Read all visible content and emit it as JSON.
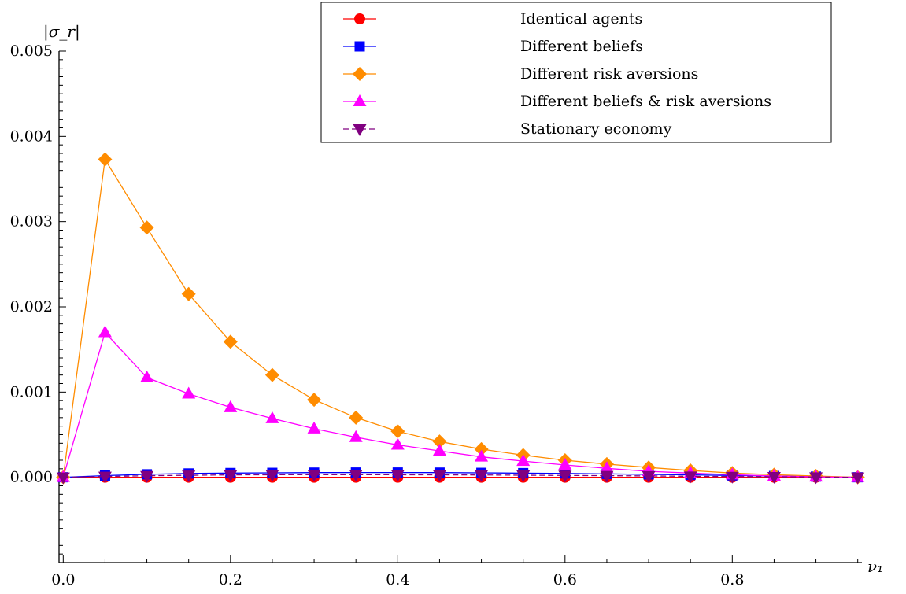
{
  "chart_data": {
    "type": "line",
    "xlabel": "ν₁",
    "ylabel": "|σ_r|",
    "xlim": [
      -0.005,
      0.955
    ],
    "ylim": [
      -0.001,
      0.005
    ],
    "x_ticks": [
      "0.0",
      "0.2",
      "0.4",
      "0.6",
      "0.8"
    ],
    "x_tick_values": [
      0.0,
      0.2,
      0.4,
      0.6,
      0.8
    ],
    "y_ticks": [
      "0.000",
      "0.001",
      "0.002",
      "0.003",
      "0.004",
      "0.005"
    ],
    "y_tick_values": [
      0.0,
      0.001,
      0.002,
      0.003,
      0.004,
      0.005
    ],
    "legend_position": "top-right",
    "x": [
      0.0,
      0.05,
      0.1,
      0.15,
      0.2,
      0.25,
      0.3,
      0.35,
      0.4,
      0.45,
      0.5,
      0.55,
      0.6,
      0.65,
      0.7,
      0.75,
      0.8,
      0.85,
      0.9,
      0.95
    ],
    "series": [
      {
        "name": "Identical agents",
        "color": "#ff0000",
        "marker": "circle",
        "dashed": false,
        "values": [
          0.0,
          0.0,
          0.0,
          0.0,
          0.0,
          0.0,
          0.0,
          0.0,
          0.0,
          0.0,
          0.0,
          0.0,
          0.0,
          0.0,
          0.0,
          0.0,
          0.0,
          0.0,
          0.0,
          0.0
        ]
      },
      {
        "name": "Different beliefs",
        "color": "#0000ff",
        "marker": "square",
        "dashed": false,
        "values": [
          0.0,
          2e-05,
          3.5e-05,
          4.5e-05,
          5e-05,
          5.2e-05,
          5.5e-05,
          5.6e-05,
          5.6e-05,
          5.5e-05,
          5.2e-05,
          4.9e-05,
          4.5e-05,
          4e-05,
          3.4e-05,
          2.8e-05,
          2.2e-05,
          1.5e-05,
          8e-06,
          0.0
        ]
      },
      {
        "name": "Different risk aversions",
        "color": "#ff8c00",
        "marker": "diamond",
        "dashed": false,
        "values": [
          0.0,
          0.00373,
          0.00293,
          0.00215,
          0.00159,
          0.0012,
          0.00091,
          0.0007,
          0.00054,
          0.00042,
          0.00033,
          0.00026,
          0.0002,
          0.000155,
          0.000115,
          8e-05,
          5e-05,
          3e-05,
          1.5e-05,
          0.0
        ]
      },
      {
        "name": "Different beliefs & risk aversions",
        "color": "#ff00ff",
        "marker": "triangle-up",
        "dashed": false,
        "values": [
          0.0,
          0.0017,
          0.00117,
          0.00098,
          0.00082,
          0.00069,
          0.00057,
          0.00047,
          0.00038,
          0.00031,
          0.00024,
          0.00019,
          0.000145,
          0.000105,
          7e-05,
          5e-05,
          3e-05,
          1.5e-05,
          5e-06,
          0.0
        ]
      },
      {
        "name": "Stationary economy",
        "color": "#800080",
        "marker": "triangle-down",
        "dashed": true,
        "values": [
          0.0,
          1e-05,
          1.8e-05,
          2.4e-05,
          2.8e-05,
          3e-05,
          3.1e-05,
          3.1e-05,
          3e-05,
          2.9e-05,
          2.7e-05,
          2.5e-05,
          2.2e-05,
          1.9e-05,
          1.6e-05,
          1.2e-05,
          9e-06,
          6e-06,
          3e-06,
          0.0
        ]
      }
    ]
  }
}
